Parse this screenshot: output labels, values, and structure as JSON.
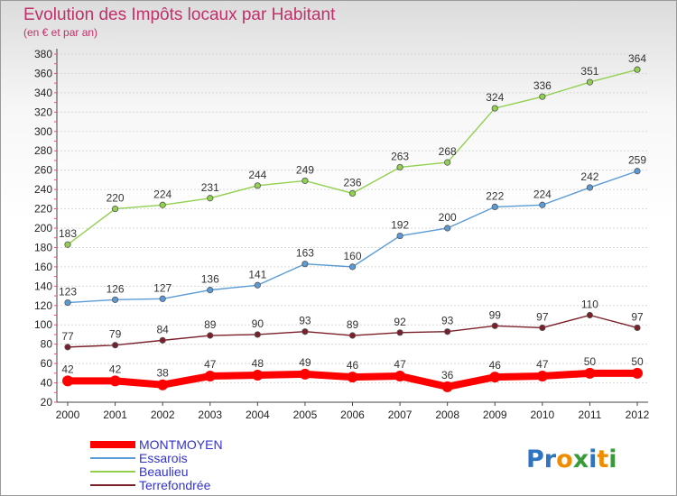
{
  "chart_data": {
    "type": "line",
    "title": "Evolution des Impôts locaux par Habitant",
    "subtitle": "(en € et par an)",
    "xlabel": "",
    "ylabel": "",
    "x": [
      "2000",
      "2001",
      "2002",
      "2003",
      "2004",
      "2005",
      "2006",
      "2007",
      "2008",
      "2009",
      "2010",
      "2011",
      "2012"
    ],
    "ylim": [
      20,
      380
    ],
    "yticks": [
      20,
      40,
      60,
      80,
      100,
      120,
      140,
      160,
      180,
      200,
      220,
      240,
      260,
      280,
      300,
      320,
      340,
      360,
      380
    ],
    "grid": "horizontal",
    "legend_position": "bottom-left",
    "series": [
      {
        "name": "MONTMOYEN",
        "color": "#ff0000",
        "values": [
          42,
          42,
          38,
          47,
          48,
          49,
          46,
          47,
          36,
          46,
          47,
          50,
          50
        ]
      },
      {
        "name": "Essarois",
        "color": "#5a9bd5",
        "values": [
          123,
          126,
          127,
          136,
          141,
          163,
          160,
          192,
          200,
          222,
          224,
          242,
          259
        ]
      },
      {
        "name": "Beaulieu",
        "color": "#92d050",
        "values": [
          183,
          220,
          224,
          231,
          244,
          249,
          236,
          263,
          268,
          324,
          336,
          351,
          364
        ]
      },
      {
        "name": "Terrefondrée",
        "color": "#7b1f2a",
        "values": [
          77,
          79,
          84,
          89,
          90,
          93,
          89,
          92,
          93,
          99,
          97,
          110,
          97
        ]
      }
    ]
  },
  "logo": {
    "text": "Proxiti",
    "letters": [
      {
        "ch": "P",
        "color": "#2f74c0"
      },
      {
        "ch": "r",
        "color": "#2f74c0"
      },
      {
        "ch": "o",
        "color": "#f08c00"
      },
      {
        "ch": "x",
        "color": "#3a9a3a"
      },
      {
        "ch": "i",
        "color": "#2f74c0"
      },
      {
        "ch": "t",
        "color": "#f08c00"
      },
      {
        "ch": "i",
        "color": "#3a9a3a"
      }
    ]
  }
}
